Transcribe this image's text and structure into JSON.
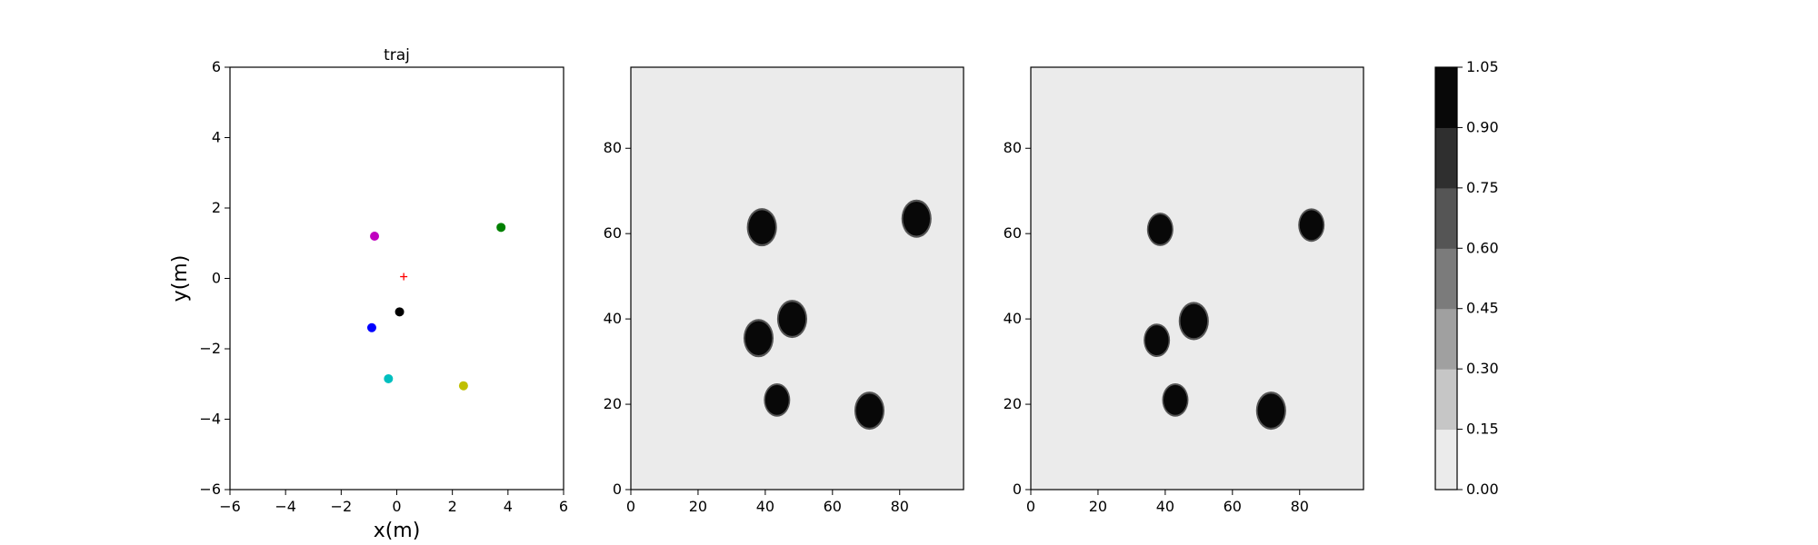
{
  "chart_data": [
    {
      "type": "scatter",
      "title": "traj",
      "xlabel": "x(m)",
      "ylabel": "y(m)",
      "xlim": [
        -6,
        6
      ],
      "ylim": [
        -6,
        6
      ],
      "xticks": [
        -6,
        -4,
        -2,
        0,
        2,
        4,
        6
      ],
      "yticks": [
        -6,
        -4,
        -2,
        0,
        2,
        4,
        6
      ],
      "grid": false,
      "points": [
        {
          "x": -0.8,
          "y": 1.2,
          "color": "#c000c0",
          "marker": "circle"
        },
        {
          "x": 3.75,
          "y": 1.45,
          "color": "#008000",
          "marker": "circle"
        },
        {
          "x": 0.25,
          "y": 0.05,
          "color": "#ff0000",
          "marker": "plus"
        },
        {
          "x": 0.1,
          "y": -0.95,
          "color": "#000000",
          "marker": "circle"
        },
        {
          "x": -0.9,
          "y": -1.4,
          "color": "#0000ff",
          "marker": "circle"
        },
        {
          "x": -0.3,
          "y": -2.85,
          "color": "#00bfbf",
          "marker": "circle"
        },
        {
          "x": 2.4,
          "y": -3.05,
          "color": "#bfbf00",
          "marker": "circle"
        }
      ]
    },
    {
      "type": "heatmap",
      "xlim": [
        0,
        99
      ],
      "ylim": [
        0,
        99
      ],
      "xticks": [
        0,
        20,
        40,
        60,
        80
      ],
      "yticks": [
        0,
        20,
        40,
        60,
        80
      ],
      "background_value": 0.08,
      "blobs": [
        {
          "x": 39,
          "y": 61.5,
          "r": 4
        },
        {
          "x": 85,
          "y": 63.5,
          "r": 4
        },
        {
          "x": 48,
          "y": 40,
          "r": 4
        },
        {
          "x": 38,
          "y": 35.5,
          "r": 4
        },
        {
          "x": 43.5,
          "y": 21,
          "r": 3.5
        },
        {
          "x": 71,
          "y": 18.5,
          "r": 4
        }
      ]
    },
    {
      "type": "heatmap",
      "xlim": [
        0,
        99
      ],
      "ylim": [
        0,
        99
      ],
      "xticks": [
        0,
        20,
        40,
        60,
        80
      ],
      "yticks": [
        0,
        20,
        40,
        60,
        80
      ],
      "background_value": 0.08,
      "blobs": [
        {
          "x": 38.5,
          "y": 61,
          "r": 3.5
        },
        {
          "x": 83.5,
          "y": 62,
          "r": 3.5
        },
        {
          "x": 48.5,
          "y": 39.5,
          "r": 4
        },
        {
          "x": 37.5,
          "y": 35,
          "r": 3.5
        },
        {
          "x": 43,
          "y": 21,
          "r": 3.5
        },
        {
          "x": 71.5,
          "y": 18.5,
          "r": 4
        }
      ]
    }
  ],
  "colorbar": {
    "levels": [
      "0.00",
      "0.15",
      "0.30",
      "0.45",
      "0.60",
      "0.75",
      "0.90",
      "1.05"
    ],
    "colors": [
      "#ebebeb",
      "#c6c6c6",
      "#a0a0a0",
      "#7b7b7b",
      "#555555",
      "#2f2f2f",
      "#080808"
    ]
  }
}
